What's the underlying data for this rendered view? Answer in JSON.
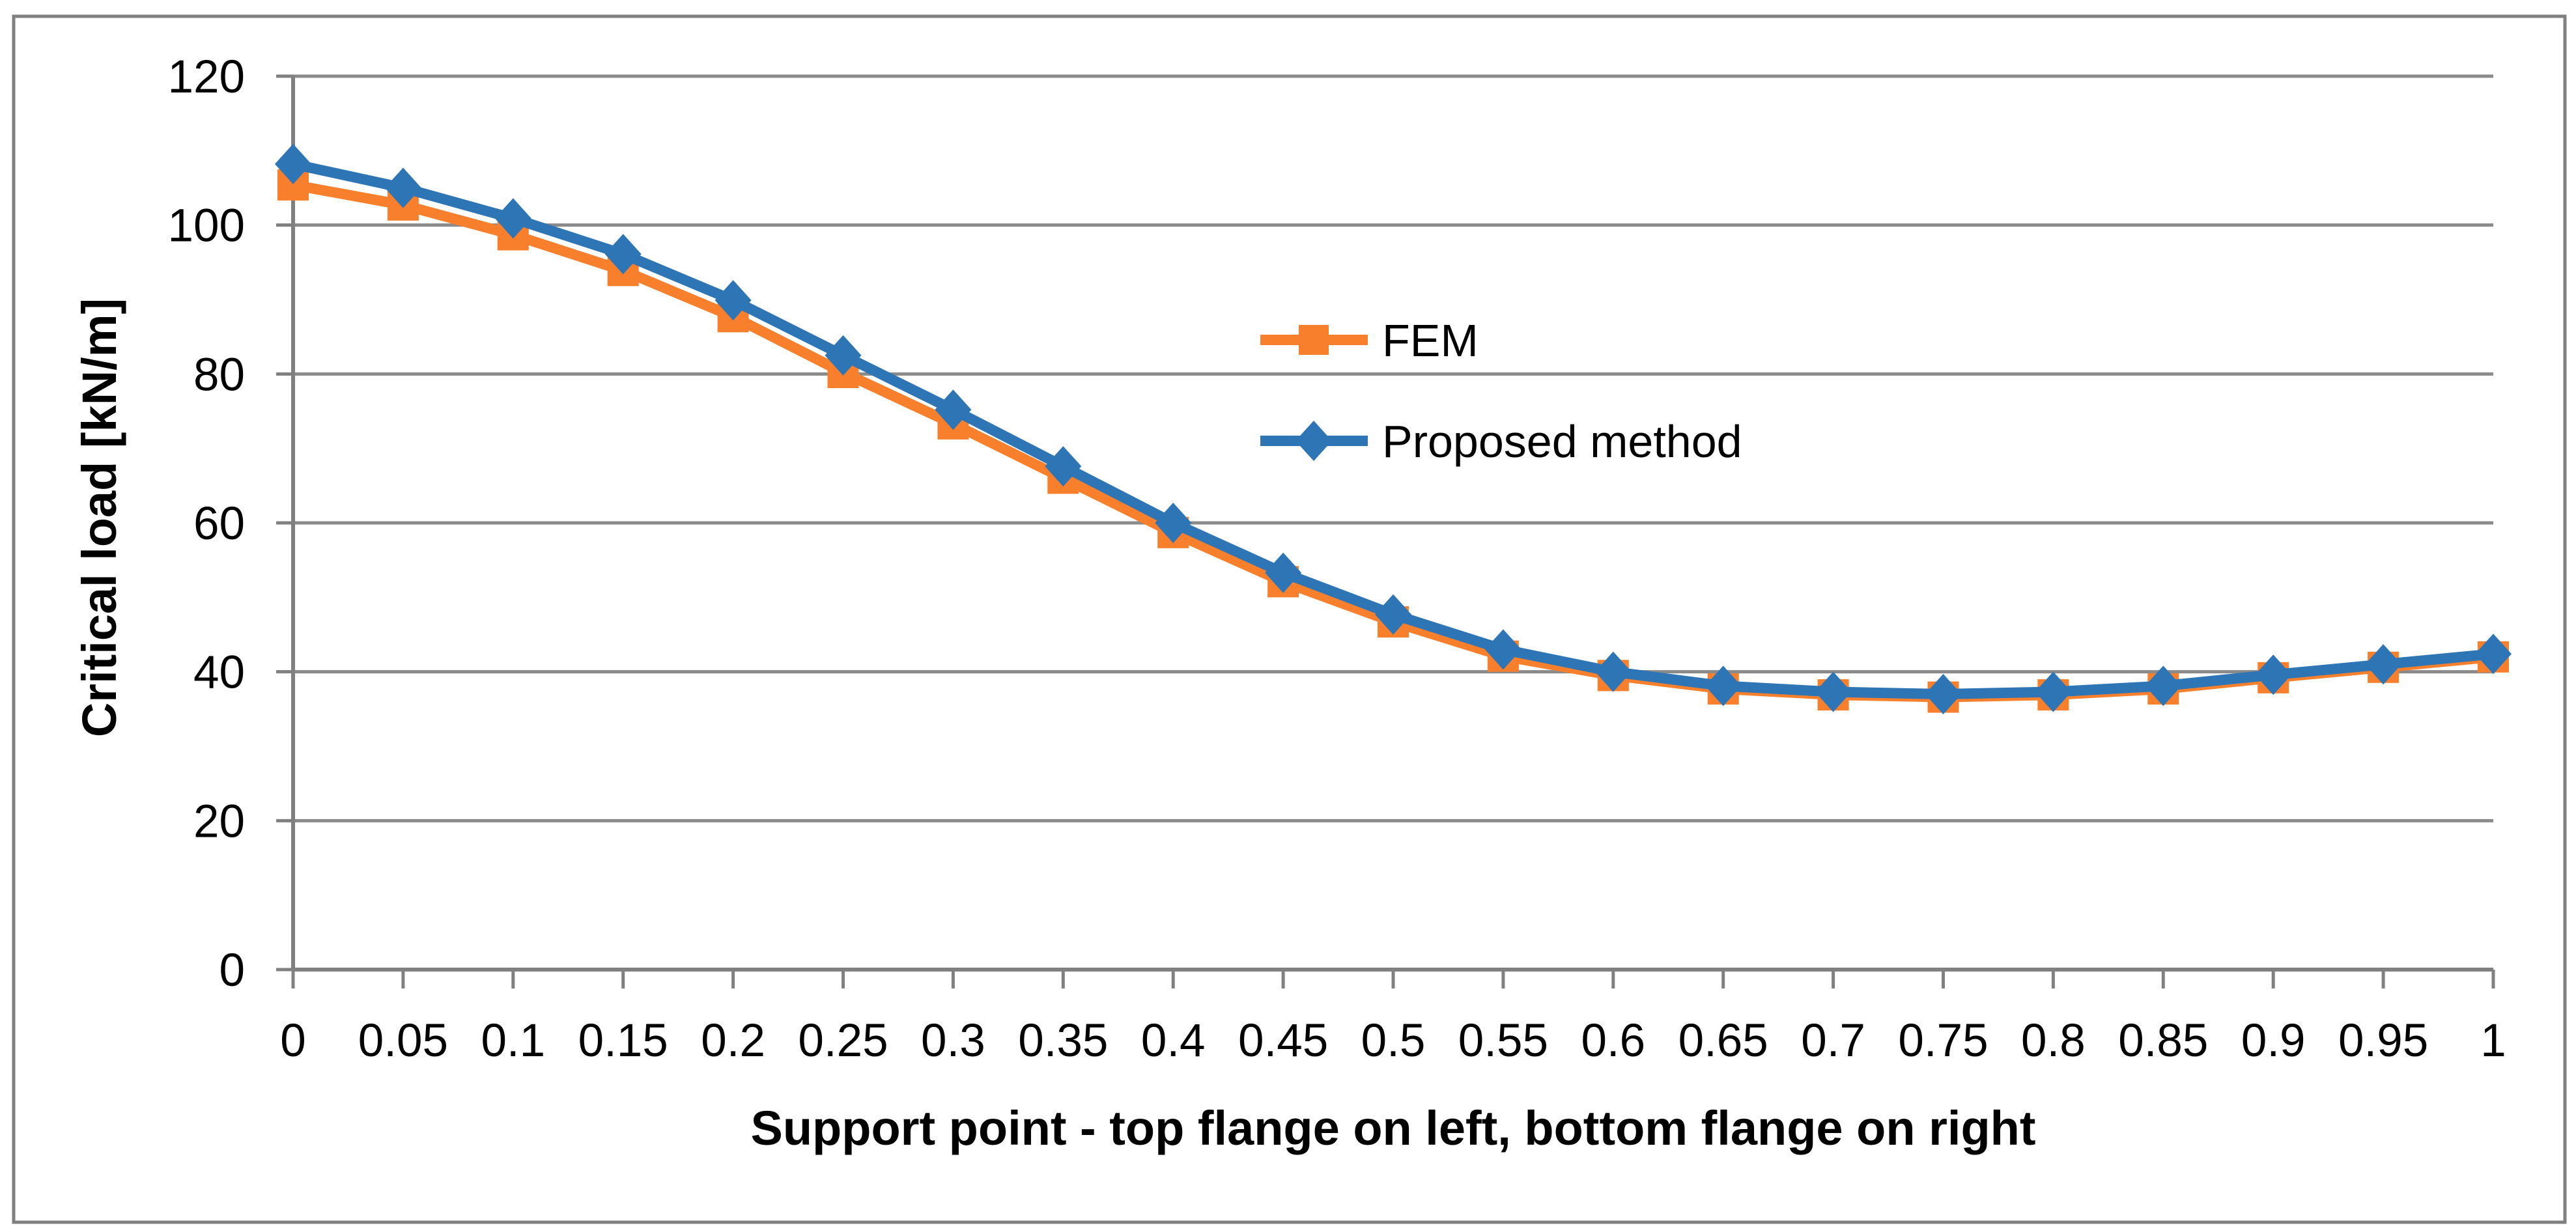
{
  "page": {
    "background": "#FFFFFF",
    "border_color": "#808080"
  },
  "chart_data": {
    "type": "line",
    "title": "",
    "xlabel": "Support point - top flange on left, bottom flange on right",
    "ylabel": "Critical load [kN/m]",
    "x": [
      0,
      0.05,
      0.1,
      0.15,
      0.2,
      0.25,
      0.3,
      0.35,
      0.4,
      0.45,
      0.5,
      0.55,
      0.6,
      0.65,
      0.7,
      0.75,
      0.8,
      0.85,
      0.9,
      0.95,
      1
    ],
    "x_tick_labels": [
      "0",
      "0.05",
      "0.1",
      "0.15",
      "0.2",
      "0.25",
      "0.3",
      "0.35",
      "0.4",
      "0.45",
      "0.5",
      "0.55",
      "0.6",
      "0.65",
      "0.7",
      "0.75",
      "0.8",
      "0.85",
      "0.9",
      "0.95",
      "1"
    ],
    "y_ticks": [
      0,
      20,
      40,
      60,
      80,
      100,
      120
    ],
    "y_tick_labels": [
      "0",
      "20",
      "40",
      "60",
      "80",
      "100",
      "120"
    ],
    "xlim": [
      0,
      1
    ],
    "ylim": [
      0,
      120
    ],
    "grid": "horizontal",
    "legend_position": "inside-upper-middle",
    "series": [
      {
        "name": "FEM",
        "color": "#F8802C",
        "marker": "square",
        "values": [
          105.4,
          102.7,
          98.7,
          93.9,
          87.7,
          80.2,
          73.3,
          66.0,
          58.7,
          52.1,
          46.7,
          42.1,
          39.5,
          37.7,
          36.9,
          36.6,
          36.9,
          37.7,
          39.2,
          40.6,
          42.0
        ]
      },
      {
        "name": "Proposed method",
        "color": "#2E75B6",
        "marker": "diamond",
        "values": [
          108.2,
          105.0,
          100.9,
          96.1,
          89.9,
          82.5,
          75.2,
          67.6,
          60.0,
          53.3,
          47.7,
          43.0,
          40.0,
          38.1,
          37.3,
          37.0,
          37.3,
          38.1,
          39.6,
          41.0,
          42.4
        ]
      }
    ],
    "colors": {
      "gridline": "#8A8A8A",
      "axis": "#808080",
      "text": "#000000"
    }
  }
}
